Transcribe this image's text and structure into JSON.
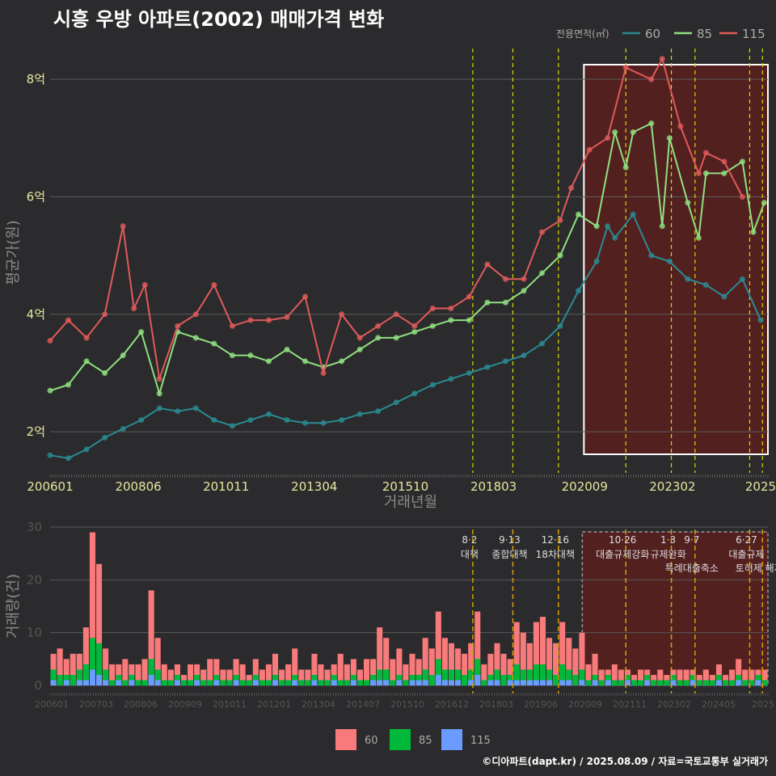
{
  "title": "시흥 우방 아파트(2002) 매매가격 변화",
  "credit": "©디아파트(dapt.kr) / 2025.08.09 / 자료=국토교통부 실거래가",
  "colors": {
    "bg": "#2b2b2d",
    "grid": "#5a5a5a",
    "vline": "#d8d800",
    "vline_lower": "#d8a000",
    "box": "#ffffff",
    "shade": "#5a1e1e",
    "s60": "#2a8a92",
    "s85": "#8fe080",
    "s115": "#e05a5a",
    "b60": "#f87a7a",
    "b85": "#00b83a",
    "b115": "#6a9cff"
  },
  "chart_data": [
    {
      "type": "line",
      "title": "시흥 우방 아파트(2002) 매매가격 변화",
      "xlabel": "거래년월",
      "ylabel": "평균가(원)",
      "x_ticks": [
        "200601",
        "200806",
        "201011",
        "201304",
        "201510",
        "201803",
        "202009",
        "202302",
        "2025"
      ],
      "y_ticks": [
        "2억",
        "4억",
        "6억",
        "8억"
      ],
      "ylim": [
        1.3,
        8.8
      ],
      "legend": {
        "title": "전용면적(㎡)",
        "position": "top-right",
        "entries": [
          "60",
          "85",
          "115"
        ]
      },
      "series": [
        {
          "name": "60",
          "points": [
            [
              2006.0,
              1.6
            ],
            [
              2006.5,
              1.55
            ],
            [
              2007.0,
              1.7
            ],
            [
              2007.5,
              1.9
            ],
            [
              2008.0,
              2.05
            ],
            [
              2008.5,
              2.2
            ],
            [
              2009.0,
              2.4
            ],
            [
              2009.5,
              2.35
            ],
            [
              2010.0,
              2.4
            ],
            [
              2010.5,
              2.2
            ],
            [
              2011.0,
              2.1
            ],
            [
              2011.5,
              2.2
            ],
            [
              2012.0,
              2.3
            ],
            [
              2012.5,
              2.2
            ],
            [
              2013.0,
              2.15
            ],
            [
              2013.5,
              2.15
            ],
            [
              2014.0,
              2.2
            ],
            [
              2014.5,
              2.3
            ],
            [
              2015.0,
              2.35
            ],
            [
              2015.5,
              2.5
            ],
            [
              2016.0,
              2.65
            ],
            [
              2016.5,
              2.8
            ],
            [
              2017.0,
              2.9
            ],
            [
              2017.5,
              3.0
            ],
            [
              2018.0,
              3.1
            ],
            [
              2018.5,
              3.2
            ],
            [
              2019.0,
              3.3
            ],
            [
              2019.5,
              3.5
            ],
            [
              2020.0,
              3.8
            ],
            [
              2020.5,
              4.4
            ],
            [
              2021.0,
              4.9
            ],
            [
              2021.3,
              5.5
            ],
            [
              2021.5,
              5.3
            ],
            [
              2022.0,
              5.7
            ],
            [
              2022.5,
              5.0
            ],
            [
              2023.0,
              4.9
            ],
            [
              2023.5,
              4.6
            ],
            [
              2024.0,
              4.5
            ],
            [
              2024.5,
              4.3
            ],
            [
              2025.0,
              4.6
            ],
            [
              2025.5,
              3.9
            ]
          ]
        },
        {
          "name": "85",
          "points": [
            [
              2006.0,
              2.7
            ],
            [
              2006.5,
              2.8
            ],
            [
              2007.0,
              3.2
            ],
            [
              2007.5,
              3.0
            ],
            [
              2008.0,
              3.3
            ],
            [
              2008.5,
              3.7
            ],
            [
              2009.0,
              2.65
            ],
            [
              2009.5,
              3.7
            ],
            [
              2010.0,
              3.6
            ],
            [
              2010.5,
              3.5
            ],
            [
              2011.0,
              3.3
            ],
            [
              2011.5,
              3.3
            ],
            [
              2012.0,
              3.2
            ],
            [
              2012.5,
              3.4
            ],
            [
              2013.0,
              3.2
            ],
            [
              2013.5,
              3.1
            ],
            [
              2014.0,
              3.2
            ],
            [
              2014.5,
              3.4
            ],
            [
              2015.0,
              3.6
            ],
            [
              2015.5,
              3.6
            ],
            [
              2016.0,
              3.7
            ],
            [
              2016.5,
              3.8
            ],
            [
              2017.0,
              3.9
            ],
            [
              2017.5,
              3.9
            ],
            [
              2018.0,
              4.2
            ],
            [
              2018.5,
              4.2
            ],
            [
              2019.0,
              4.4
            ],
            [
              2019.5,
              4.7
            ],
            [
              2020.0,
              5.0
            ],
            [
              2020.5,
              5.7
            ],
            [
              2021.0,
              5.5
            ],
            [
              2021.5,
              7.1
            ],
            [
              2021.8,
              6.5
            ],
            [
              2022.0,
              7.1
            ],
            [
              2022.5,
              7.25
            ],
            [
              2022.8,
              5.5
            ],
            [
              2023.0,
              7.0
            ],
            [
              2023.5,
              5.9
            ],
            [
              2023.8,
              5.3
            ],
            [
              2024.0,
              6.4
            ],
            [
              2024.5,
              6.4
            ],
            [
              2025.0,
              6.6
            ],
            [
              2025.3,
              5.4
            ],
            [
              2025.6,
              5.9
            ]
          ]
        },
        {
          "name": "115",
          "points": [
            [
              2006.0,
              3.55
            ],
            [
              2006.5,
              3.9
            ],
            [
              2007.0,
              3.6
            ],
            [
              2007.5,
              4.0
            ],
            [
              2008.0,
              5.5
            ],
            [
              2008.3,
              4.1
            ],
            [
              2008.6,
              4.5
            ],
            [
              2009.0,
              2.9
            ],
            [
              2009.5,
              3.8
            ],
            [
              2010.0,
              4.0
            ],
            [
              2010.5,
              4.5
            ],
            [
              2011.0,
              3.8
            ],
            [
              2011.5,
              3.9
            ],
            [
              2012.0,
              3.9
            ],
            [
              2012.5,
              3.95
            ],
            [
              2013.0,
              4.3
            ],
            [
              2013.5,
              3.0
            ],
            [
              2014.0,
              4.0
            ],
            [
              2014.5,
              3.6
            ],
            [
              2015.0,
              3.8
            ],
            [
              2015.5,
              4.0
            ],
            [
              2016.0,
              3.8
            ],
            [
              2016.5,
              4.1
            ],
            [
              2017.0,
              4.1
            ],
            [
              2017.5,
              4.3
            ],
            [
              2018.0,
              4.85
            ],
            [
              2018.5,
              4.6
            ],
            [
              2019.0,
              4.6
            ],
            [
              2019.5,
              5.4
            ],
            [
              2020.0,
              5.6
            ],
            [
              2020.3,
              6.15
            ],
            [
              2020.8,
              6.8
            ],
            [
              2021.3,
              7.0
            ],
            [
              2021.8,
              8.2
            ],
            [
              2022.5,
              8.0
            ],
            [
              2022.8,
              8.35
            ],
            [
              2023.3,
              7.2
            ],
            [
              2023.8,
              6.4
            ],
            [
              2024.0,
              6.75
            ],
            [
              2024.5,
              6.6
            ],
            [
              2025.0,
              6.0
            ]
          ]
        }
      ],
      "vlines": [
        2017.6,
        2018.7,
        2019.95,
        2021.8,
        2023.05,
        2023.7,
        2025.2,
        2025.55
      ],
      "highlight_box": [
        2020.65,
        2025.7
      ]
    },
    {
      "type": "bar",
      "ylabel": "거래량(건)",
      "x_ticks": [
        "200601",
        "200703",
        "200806",
        "200909",
        "201011",
        "201201",
        "201304",
        "201407",
        "201510",
        "201612",
        "201803",
        "201906",
        "202009",
        "202111",
        "202302",
        "202405",
        "2025"
      ],
      "y_ticks": [
        "0",
        "10",
        "20",
        "30"
      ],
      "ylim": [
        0,
        30
      ],
      "legend": {
        "position": "bottom",
        "entries": [
          "60",
          "85",
          "115"
        ]
      },
      "series": [
        {
          "name": "60",
          "values": [
            3,
            5,
            3,
            4,
            3,
            7,
            20,
            15,
            4,
            3,
            2,
            4,
            2,
            3,
            4,
            13,
            6,
            3,
            2,
            2,
            1,
            3,
            2,
            2,
            4,
            3,
            2,
            2,
            3,
            3,
            1,
            3,
            2,
            3,
            4,
            2,
            3,
            5,
            2,
            2,
            4,
            3,
            2,
            2,
            5,
            3,
            3,
            2,
            4,
            3,
            8,
            6,
            4,
            5,
            3,
            4,
            3,
            6,
            5,
            9,
            6,
            5,
            4,
            4,
            5,
            9,
            3,
            4,
            5,
            4,
            3,
            8,
            7,
            5,
            8,
            9,
            6,
            6,
            8,
            6,
            5,
            7,
            3,
            4,
            2,
            1,
            3,
            2,
            1,
            1,
            2,
            1,
            1,
            2,
            1,
            1,
            2,
            2,
            1,
            1,
            2,
            1,
            2,
            1,
            2,
            3,
            2,
            2,
            1,
            2
          ]
        },
        {
          "name": "85",
          "values": [
            2,
            2,
            1,
            2,
            2,
            3,
            6,
            6,
            2,
            1,
            1,
            1,
            1,
            1,
            1,
            3,
            2,
            1,
            1,
            1,
            1,
            1,
            1,
            1,
            1,
            1,
            1,
            1,
            1,
            1,
            1,
            1,
            1,
            1,
            1,
            1,
            1,
            1,
            1,
            1,
            1,
            1,
            1,
            1,
            1,
            1,
            1,
            1,
            1,
            1,
            2,
            2,
            1,
            1,
            1,
            1,
            1,
            2,
            2,
            3,
            2,
            2,
            2,
            2,
            2,
            3,
            1,
            1,
            2,
            2,
            1,
            3,
            2,
            2,
            3,
            3,
            2,
            2,
            3,
            2,
            2,
            2,
            1,
            1,
            1,
            1,
            1,
            1,
            1,
            1,
            1,
            1,
            1,
            1,
            1,
            1,
            1,
            1,
            1,
            1,
            1,
            1,
            1,
            1,
            1,
            1,
            1,
            1,
            1,
            1
          ]
        },
        {
          "name": "115",
          "values": [
            1,
            0,
            1,
            0,
            1,
            1,
            3,
            2,
            1,
            0,
            1,
            0,
            1,
            0,
            0,
            2,
            1,
            0,
            0,
            1,
            0,
            0,
            1,
            0,
            0,
            1,
            0,
            0,
            1,
            0,
            0,
            1,
            0,
            0,
            1,
            0,
            0,
            1,
            0,
            0,
            1,
            0,
            0,
            1,
            0,
            0,
            1,
            0,
            0,
            1,
            1,
            1,
            0,
            1,
            0,
            1,
            1,
            1,
            0,
            2,
            1,
            1,
            1,
            0,
            1,
            2,
            0,
            1,
            1,
            0,
            1,
            1,
            1,
            1,
            1,
            1,
            1,
            0,
            1,
            1,
            0,
            1,
            0,
            1,
            0,
            1,
            0,
            0,
            1,
            0,
            0,
            1,
            0,
            0,
            0,
            1,
            0,
            0,
            1,
            0,
            0,
            0,
            1,
            0,
            0,
            1,
            0,
            0,
            1,
            0
          ]
        }
      ],
      "annotations": [
        {
          "x": 2017.6,
          "date": "8·2",
          "text": "대책"
        },
        {
          "x": 2018.7,
          "date": "9·13",
          "text": "종합대책"
        },
        {
          "x": 2019.95,
          "date": "12·16",
          "text": "18차대책"
        },
        {
          "x": 2021.8,
          "date": "10·26",
          "text": "대출규제강화"
        },
        {
          "x": 2023.05,
          "date": "1·3",
          "text": "규제완화"
        },
        {
          "x": 2023.7,
          "date": "9·7",
          "text": "특례대출축소"
        },
        {
          "x": 2025.2,
          "date": "6·27",
          "text": "대출규제"
        },
        {
          "x": 2025.55,
          "date": "",
          "text": "토허제 해제"
        }
      ]
    }
  ]
}
